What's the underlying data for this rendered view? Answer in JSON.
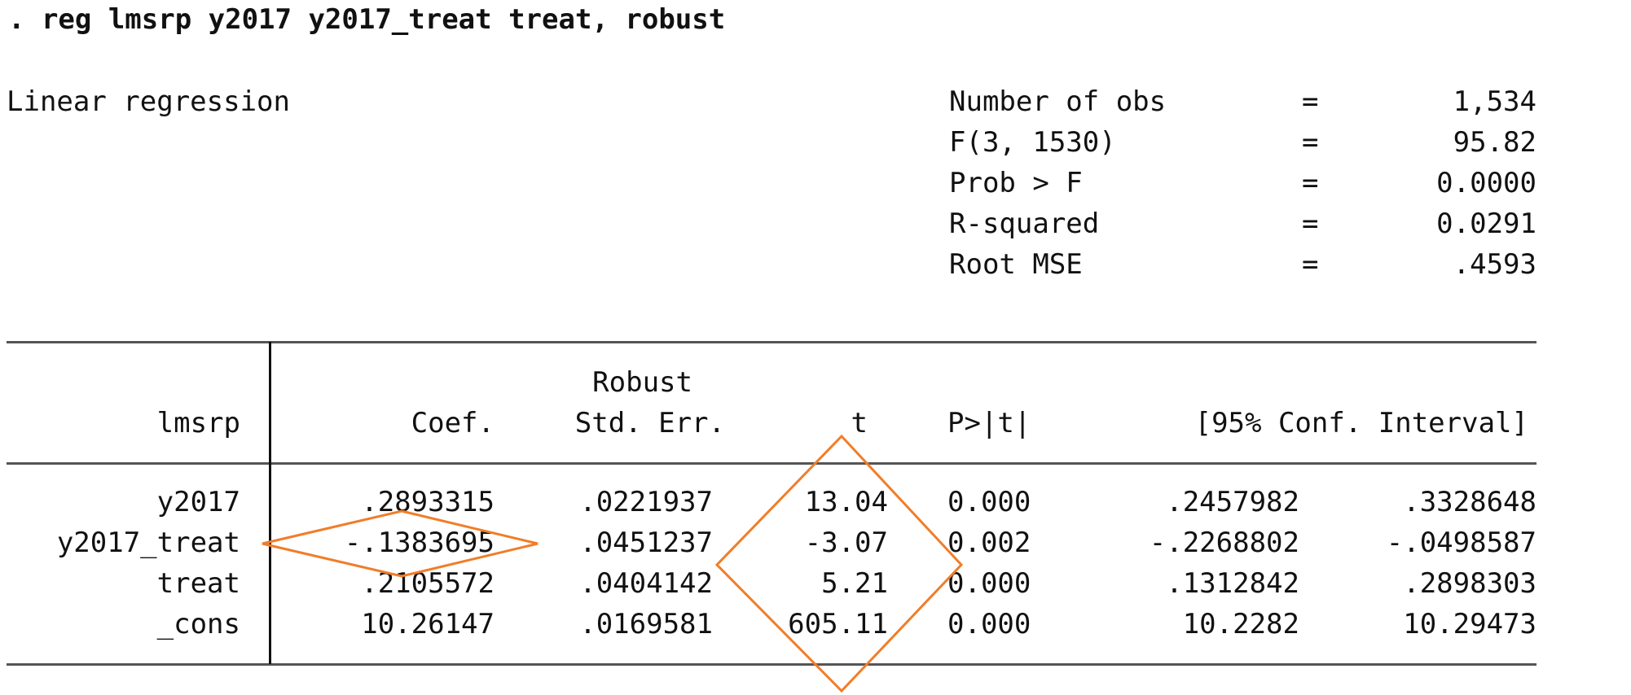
{
  "command": ". reg lmsrp y2017 y2017_treat treat, robust",
  "model_title": "Linear regression",
  "stats": [
    {
      "label": "Number of obs",
      "eq": "=",
      "value": "1,534"
    },
    {
      "label": "F(3, 1530)",
      "eq": "=",
      "value": "95.82"
    },
    {
      "label": "Prob > F",
      "eq": "=",
      "value": "0.0000"
    },
    {
      "label": "R-squared",
      "eq": "=",
      "value": "0.0291"
    },
    {
      "label": "Root MSE",
      "eq": "=",
      "value": ".4593"
    }
  ],
  "table": {
    "header_super": "Robust",
    "dep_var": "lmsrp",
    "columns": [
      "Coef.",
      "Std. Err.",
      "t",
      "P>|t|",
      "[95% Conf. Interval]"
    ],
    "rows": [
      {
        "name": "y2017",
        "coef": ".2893315",
        "se": ".0221937",
        "t": "13.04",
        "p": "0.000",
        "lo": ".2457982",
        "hi": ".3328648"
      },
      {
        "name": "y2017_treat",
        "coef": "-.1383695",
        "se": ".0451237",
        "t": "-3.07",
        "p": "0.002",
        "lo": "-.2268802",
        "hi": "-.0498587"
      },
      {
        "name": "treat",
        "coef": ".2105572",
        "se": ".0404142",
        "t": "5.21",
        "p": "0.000",
        "lo": ".1312842",
        "hi": ".2898303"
      },
      {
        "name": "_cons",
        "coef": "10.26147",
        "se": ".0169581",
        "t": "605.11",
        "p": "0.000",
        "lo": "10.2282",
        "hi": "10.29473"
      }
    ]
  },
  "annotation_color": "#F07D28"
}
